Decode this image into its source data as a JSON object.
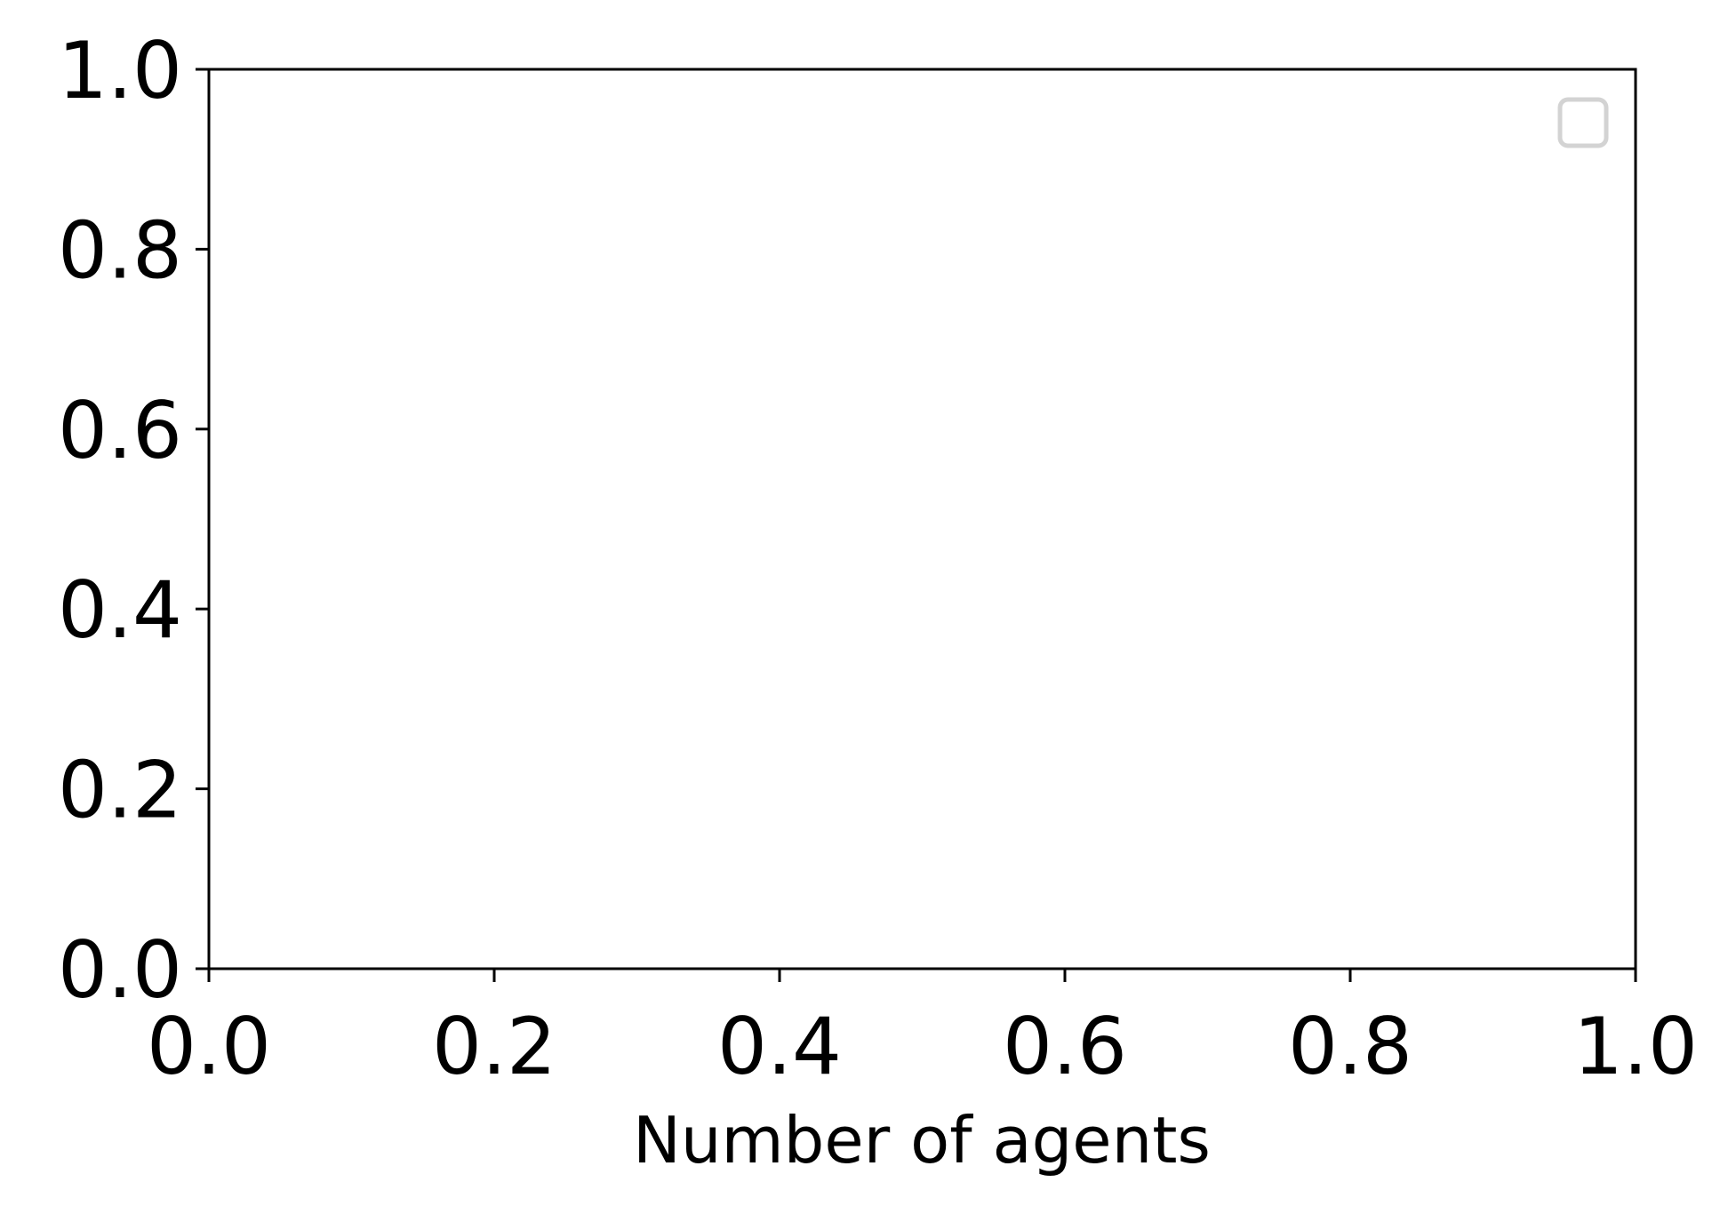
{
  "chart_data": {
    "type": "line",
    "title": "",
    "xlabel": "Number of agents",
    "ylabel": "",
    "xlim": [
      0.0,
      1.0
    ],
    "ylim": [
      0.0,
      1.0
    ],
    "x_ticks": [
      "0.0",
      "0.2",
      "0.4",
      "0.6",
      "0.8",
      "1.0"
    ],
    "y_ticks": [
      "0.0",
      "0.2",
      "0.4",
      "0.6",
      "0.8",
      "1.0"
    ],
    "series": [],
    "grid": false,
    "legend": {
      "placement": "top-right",
      "entries": []
    },
    "colors": {
      "axis": "#000000",
      "legend_border": "#d3d3d3",
      "background": "#ffffff"
    }
  }
}
